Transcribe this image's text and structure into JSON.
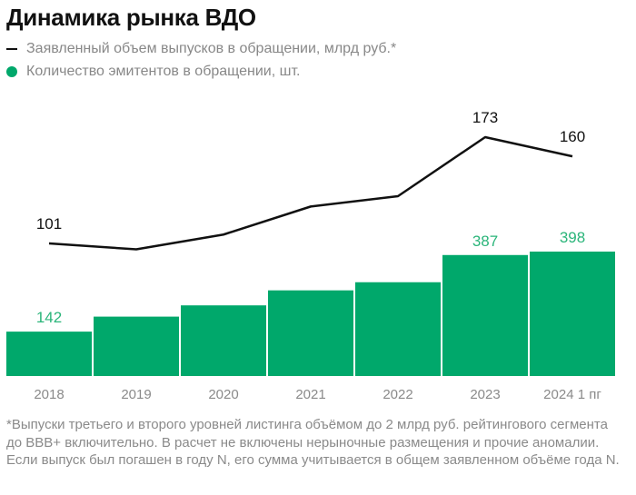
{
  "title": "Динамика рынка ВДО",
  "legend": [
    {
      "label": "Заявленный объем выпусков в обращении, млрд руб.*",
      "marker": "line",
      "color": "#111111"
    },
    {
      "label": "Количество эмитентов в обращении, шт.",
      "marker": "dot",
      "color": "#00a86b"
    }
  ],
  "chart_data": {
    "type": "bar+line",
    "categories": [
      "2018",
      "2019",
      "2020",
      "2021",
      "2022",
      "2023",
      "2024 1 пг"
    ],
    "series": [
      {
        "name": "Количество эмитентов в обращении, шт.",
        "type": "bar",
        "color": "#00a86b",
        "values": [
          142,
          190,
          226,
          274,
          300,
          387,
          398
        ],
        "labels": [
          "142",
          "",
          "",
          "",
          "",
          "387",
          "398"
        ]
      },
      {
        "name": "Заявленный объем выпусков в обращении, млрд руб.*",
        "type": "line",
        "color": "#111111",
        "values": [
          101,
          97,
          107,
          126,
          133,
          173,
          160
        ],
        "labels": [
          "101",
          "",
          "",
          "",
          "",
          "173",
          "160"
        ]
      }
    ],
    "grid": false
  },
  "footnote": "*Выпуски третьего и второго уровней листинга объёмом до 2 млрд руб. рейтингового сегмента до ВВВ+ включительно. В расчет не включены нерыночные размещения и прочие аномалии. Если выпуск был погашен в году N, его сумма учитывается в общем заявленном объёме года N."
}
